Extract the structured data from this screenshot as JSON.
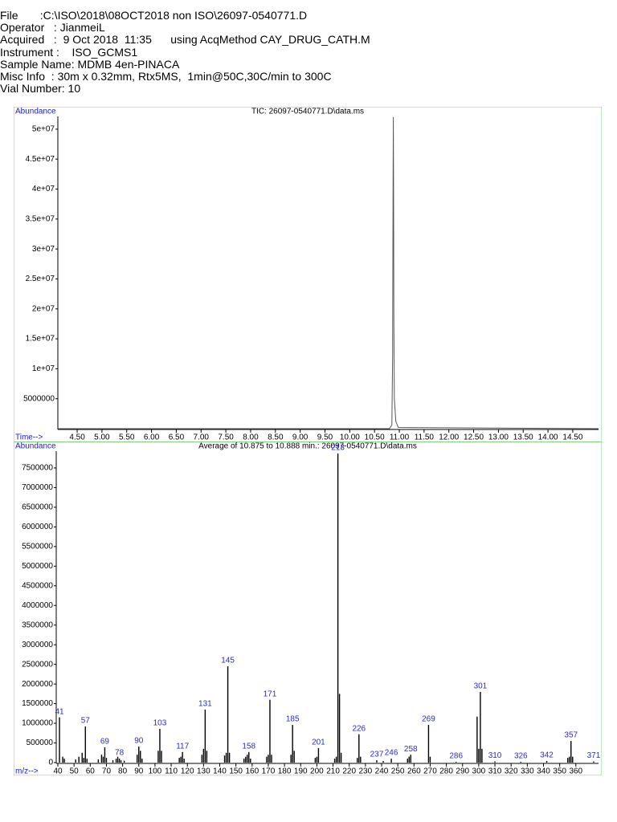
{
  "header": {
    "lines": [
      "File       :C:\\ISO\\2018\\08OCT2018 non ISO\\26097-0540771.D",
      "Operator   : JianmeiL",
      "Acquired   :  9 Oct 2018  11:35      using AcqMethod CAY_DRUG_CATH.M",
      "Instrument :    ISO_GCMS1",
      "Sample Name: MDMB 4en-PINACA",
      "Misc Info  : 30m x 0.32mm, Rtx5MS,  1min@50C,30C/min to 300C",
      "Vial Number: 10"
    ]
  },
  "chart_data": [
    {
      "type": "line",
      "title": "TIC: 26097-0540771.D\\data.ms",
      "y_label": "Abundance",
      "x_label": "Time-->",
      "color": "#555555",
      "series": [
        {
          "x": [
            4.11,
            10.8,
            10.85,
            10.865,
            10.875,
            10.88,
            10.885,
            10.89,
            10.9,
            10.93,
            10.98,
            15.02
          ],
          "values": [
            0,
            0,
            600000,
            12000000,
            42000000,
            52000000,
            38000000,
            18000000,
            5000000,
            1200000,
            200000,
            0
          ]
        }
      ],
      "xlim": [
        4.11,
        15.02
      ],
      "ylim": [
        0,
        52000000
      ],
      "xticks": [
        {
          "value": 4.5,
          "label": "4.50"
        },
        {
          "value": 5,
          "label": "5.00"
        },
        {
          "value": 5.5,
          "label": "5.50"
        },
        {
          "value": 6,
          "label": "6.00"
        },
        {
          "value": 6.5,
          "label": "6.50"
        },
        {
          "value": 7,
          "label": "7.00"
        },
        {
          "value": 7.5,
          "label": "7.50"
        },
        {
          "value": 8,
          "label": "8.00"
        },
        {
          "value": 8.5,
          "label": "8.50"
        },
        {
          "value": 9,
          "label": "9.00"
        },
        {
          "value": 9.5,
          "label": "9.50"
        },
        {
          "value": 10,
          "label": "10.00"
        },
        {
          "value": 10.5,
          "label": "10.50"
        },
        {
          "value": 11,
          "label": "11.00"
        },
        {
          "value": 11.5,
          "label": "11.50"
        },
        {
          "value": 12,
          "label": "12.00"
        },
        {
          "value": 12.5,
          "label": "12.50"
        },
        {
          "value": 13,
          "label": "13.00"
        },
        {
          "value": 13.5,
          "label": "13.50"
        },
        {
          "value": 14,
          "label": "14.00"
        },
        {
          "value": 14.5,
          "label": "14.50"
        }
      ],
      "yticks": [
        5000000,
        {
          "value": 10000000,
          "label": "1e+07"
        },
        {
          "value": 15000000,
          "label": "1.5e+07"
        },
        {
          "value": 20000000,
          "label": "2e+07"
        },
        {
          "value": 25000000,
          "label": "2.5e+07"
        },
        {
          "value": 30000000,
          "label": "3e+07"
        },
        {
          "value": 35000000,
          "label": "3.5e+07"
        },
        {
          "value": 40000000,
          "label": "4e+07"
        },
        {
          "value": 45000000,
          "label": "4.5e+07"
        },
        {
          "value": 50000000,
          "label": "5e+07"
        }
      ]
    },
    {
      "type": "bar",
      "title": "Average of 10.875 to 10.888 min.: 26097-0540771.D\\data.ms",
      "y_label": "Abundance",
      "x_label": "m/z-->",
      "color": "#000000",
      "label_color": "#2a2acc",
      "x": [
        41,
        43,
        44,
        51,
        53,
        55,
        56,
        57,
        58,
        65,
        67,
        68,
        69,
        70,
        74,
        76,
        77,
        78,
        79,
        81,
        89,
        90,
        91,
        92,
        102,
        103,
        104,
        115,
        116,
        117,
        118,
        129,
        130,
        131,
        132,
        143,
        144,
        145,
        146,
        155,
        156,
        157,
        158,
        159,
        169,
        170,
        171,
        172,
        184,
        185,
        186,
        199,
        200,
        201,
        211,
        212,
        213,
        214,
        215,
        225,
        226,
        227,
        237,
        241,
        246,
        256,
        257,
        258,
        269,
        270,
        286,
        299,
        300,
        301,
        302,
        310,
        326,
        342,
        355,
        356,
        357,
        358,
        371
      ],
      "values": [
        1150000,
        150000,
        100000,
        80000,
        150000,
        250000,
        120000,
        920000,
        100000,
        80000,
        200000,
        150000,
        390000,
        120000,
        60000,
        100000,
        150000,
        100000,
        60000,
        50000,
        200000,
        410000,
        300000,
        100000,
        300000,
        860000,
        300000,
        120000,
        150000,
        270000,
        100000,
        200000,
        350000,
        1350000,
        300000,
        180000,
        250000,
        2450000,
        250000,
        100000,
        150000,
        200000,
        270000,
        100000,
        150000,
        200000,
        1600000,
        200000,
        200000,
        960000,
        300000,
        120000,
        150000,
        370000,
        100000,
        150000,
        7870000,
        1750000,
        250000,
        120000,
        720000,
        150000,
        60000,
        40000,
        100000,
        100000,
        150000,
        200000,
        960000,
        150000,
        20000,
        1170000,
        350000,
        1800000,
        350000,
        30000,
        20000,
        40000,
        120000,
        150000,
        550000,
        150000,
        30000
      ],
      "point_labels": [
        41,
        null,
        null,
        null,
        null,
        null,
        null,
        57,
        null,
        null,
        null,
        null,
        69,
        null,
        null,
        null,
        null,
        78,
        null,
        null,
        null,
        90,
        null,
        null,
        null,
        103,
        null,
        null,
        null,
        117,
        null,
        null,
        null,
        131,
        null,
        null,
        null,
        145,
        null,
        null,
        null,
        null,
        158,
        null,
        null,
        null,
        171,
        null,
        null,
        185,
        null,
        null,
        null,
        201,
        null,
        null,
        213,
        null,
        null,
        null,
        226,
        null,
        237,
        null,
        246,
        null,
        null,
        258,
        269,
        null,
        286,
        null,
        null,
        301,
        null,
        310,
        326,
        342,
        null,
        null,
        357,
        null,
        371
      ],
      "xlim": [
        39,
        374
      ],
      "ylim": [
        0,
        8000000
      ],
      "xticks": [
        40,
        50,
        60,
        70,
        80,
        90,
        100,
        110,
        120,
        130,
        140,
        150,
        160,
        170,
        180,
        190,
        200,
        210,
        220,
        230,
        240,
        250,
        260,
        270,
        280,
        290,
        300,
        310,
        320,
        330,
        340,
        350,
        360
      ],
      "yticks": [
        0,
        500000,
        1000000,
        1500000,
        2000000,
        2500000,
        3000000,
        3500000,
        4000000,
        4500000,
        5000000,
        5500000,
        6000000,
        6500000,
        7000000,
        7500000
      ]
    }
  ]
}
